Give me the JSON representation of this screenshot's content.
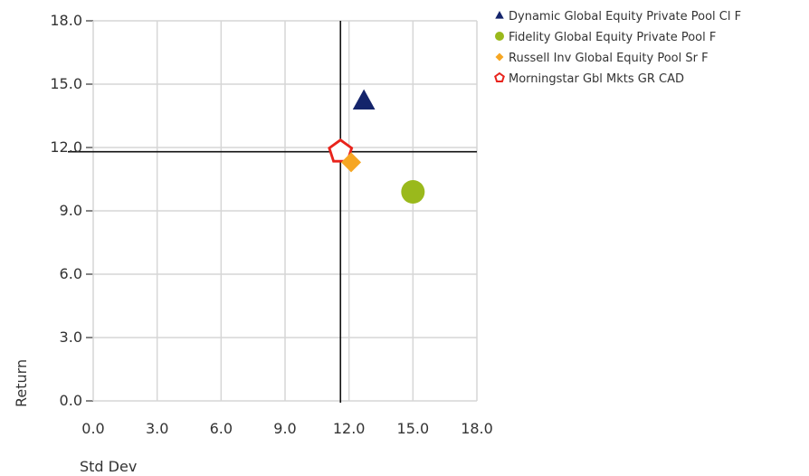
{
  "chart_data": {
    "type": "scatter",
    "xlabel": "Std Dev",
    "ylabel": "Return",
    "xlim": [
      0,
      18
    ],
    "ylim": [
      0,
      18
    ],
    "x_ticks": [
      "0.0",
      "3.0",
      "6.0",
      "9.0",
      "12.0",
      "15.0",
      "18.0"
    ],
    "y_ticks": [
      "0.0",
      "3.0",
      "6.0",
      "9.0",
      "12.0",
      "15.0",
      "18.0"
    ],
    "grid": true,
    "legend_position": "top-right",
    "reference_lines": {
      "x": 11.6,
      "y": 11.8
    },
    "series": [
      {
        "name": "Dynamic Global Equity Private Pool Cl F",
        "marker": "triangle-icon",
        "color": "#14246b",
        "x": 12.7,
        "y": 14.2
      },
      {
        "name": "Fidelity Global Equity Private Pool F",
        "marker": "circle-icon",
        "color": "#9ab91c",
        "x": 15.0,
        "y": 9.9
      },
      {
        "name": "Russell Inv Global Equity Pool Sr F",
        "marker": "diamond-icon",
        "color": "#f6a623",
        "x": 12.1,
        "y": 11.3
      },
      {
        "name": "Morningstar Gbl Mkts GR CAD",
        "marker": "pentagon-outline-icon",
        "color": "#e8231b",
        "x": 11.6,
        "y": 11.8
      }
    ]
  }
}
